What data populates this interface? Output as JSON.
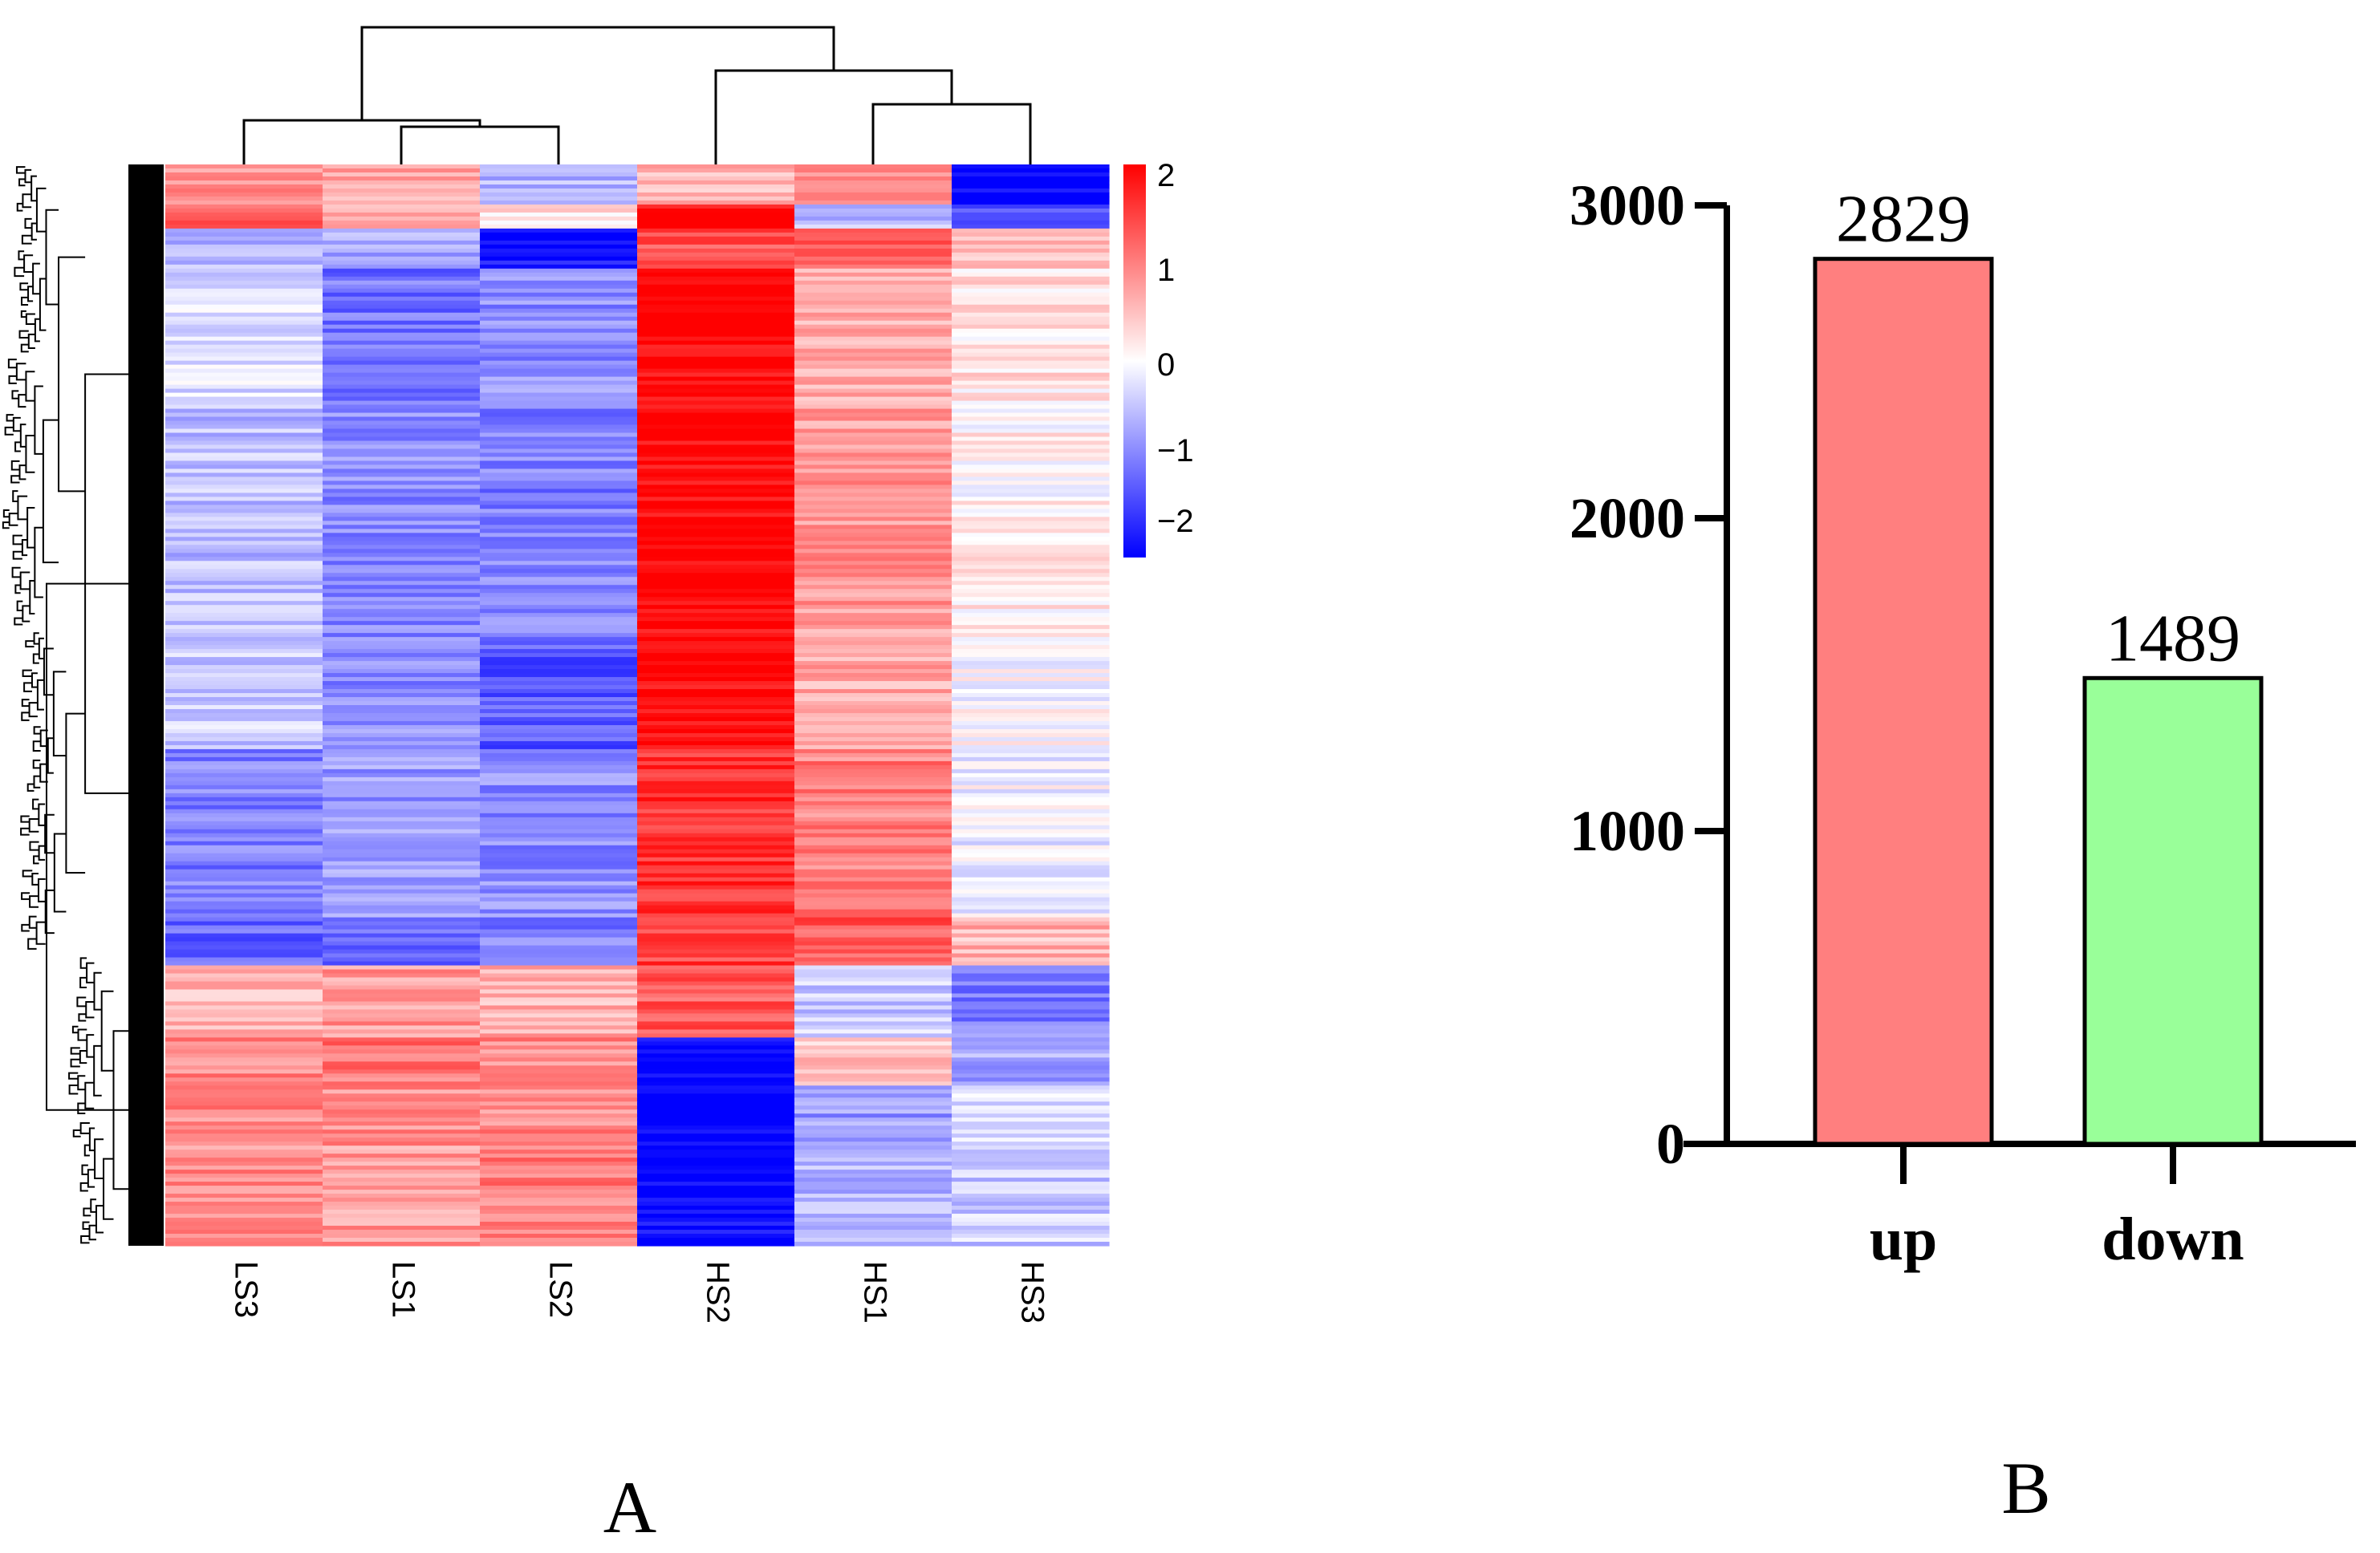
{
  "panels": {
    "a_label": "A",
    "b_label": "B"
  },
  "chart_data": [
    {
      "type": "heatmap",
      "columns": [
        "LS3",
        "LS1",
        "LS2",
        "HS2",
        "HS1",
        "HS3"
      ],
      "color_scale": {
        "min": -2,
        "max": 2,
        "low_color": "#0000ff",
        "mid_color": "#ffffff",
        "high_color": "#ff0000",
        "ticks": [
          {
            "value": 2,
            "label": "2"
          },
          {
            "value": 1,
            "label": "1"
          },
          {
            "value": 0,
            "label": "0"
          },
          {
            "value": -1,
            "label": "−1"
          },
          {
            "value": -2,
            "label": "−2"
          }
        ]
      },
      "row_blocks": [
        {
          "rows": 10,
          "means": [
            0.8,
            0.7,
            -0.6,
            0.5,
            0.9,
            -2.0
          ]
        },
        {
          "rows": 6,
          "means": [
            1.2,
            0.7,
            0.3,
            2.0,
            -0.6,
            -1.4
          ]
        },
        {
          "rows": 10,
          "means": [
            -0.5,
            -0.7,
            -1.9,
            1.4,
            1.3,
            0.4
          ]
        },
        {
          "rows": 35,
          "means": [
            -0.3,
            -1.1,
            -0.9,
            2.0,
            0.7,
            0.2
          ]
        },
        {
          "rows": 60,
          "means": [
            -0.5,
            -0.9,
            -1.0,
            2.0,
            0.8,
            0.1
          ]
        },
        {
          "rows": 25,
          "means": [
            -0.4,
            -0.9,
            -1.3,
            2.0,
            0.7,
            0.0
          ]
        },
        {
          "rows": 42,
          "means": [
            -1.0,
            -0.8,
            -0.9,
            1.6,
            1.0,
            -0.1
          ]
        },
        {
          "rows": 12,
          "means": [
            -1.2,
            -1.1,
            -1.0,
            1.5,
            1.3,
            0.6
          ]
        },
        {
          "rows": 18,
          "means": [
            0.6,
            0.8,
            0.6,
            1.3,
            -0.4,
            -1.0
          ]
        },
        {
          "rows": 12,
          "means": [
            0.9,
            1.1,
            0.9,
            -1.9,
            0.4,
            -0.7
          ]
        },
        {
          "rows": 15,
          "means": [
            0.9,
            0.9,
            0.9,
            -2.0,
            -0.8,
            -0.3
          ]
        },
        {
          "rows": 25,
          "means": [
            0.9,
            0.8,
            1.0,
            -2.0,
            -0.6,
            -0.4
          ]
        }
      ],
      "dendrogram_top": "LS3 joins (LS1, LS2); HS2 joins (HS1, HS3); both clusters merge at root",
      "dendrogram_left": true
    },
    {
      "type": "bar",
      "categories": [
        "up",
        "down"
      ],
      "values": [
        2829,
        1489
      ],
      "data_labels": [
        "2829",
        "1489"
      ],
      "bar_colors": [
        "#ff7f7f",
        "#99ff99"
      ],
      "ylim": [
        0,
        3000
      ],
      "yticks": [
        0,
        1000,
        2000,
        3000
      ],
      "ytick_labels": [
        "0",
        "1000",
        "2000",
        "3000"
      ],
      "xlabel": "",
      "ylabel": "",
      "title": ""
    }
  ]
}
